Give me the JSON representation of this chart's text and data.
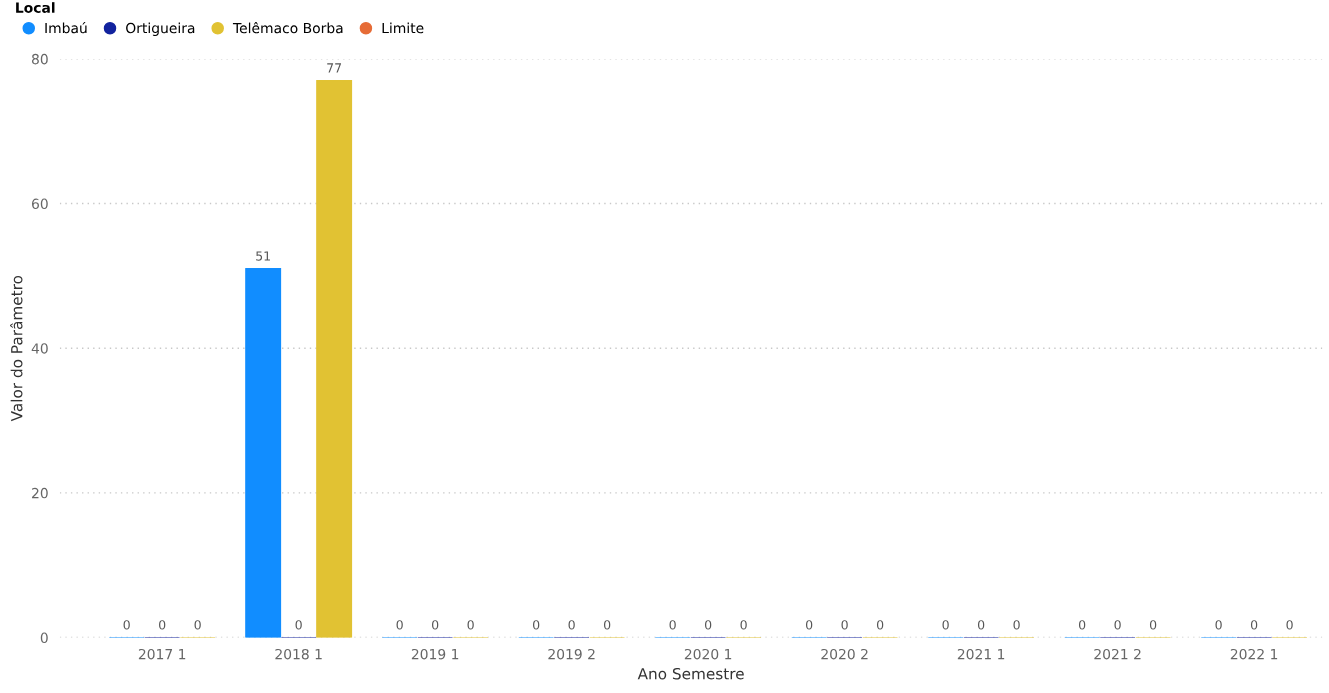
{
  "chart_data": {
    "type": "bar",
    "xlabel": "Ano Semestre",
    "ylabel": "Valor do Parâmetro",
    "legend_title": "Local",
    "categories": [
      "2017 1",
      "2018 1",
      "2019 1",
      "2019 2",
      "2020 1",
      "2020 2",
      "2021 1",
      "2021 2",
      "2022 1"
    ],
    "series": [
      {
        "name": "Imbaú",
        "color": "#118dff",
        "values": [
          0,
          51,
          0,
          0,
          0,
          0,
          0,
          0,
          0
        ]
      },
      {
        "name": "Ortigueira",
        "color": "#12239e",
        "values": [
          0,
          0,
          0,
          0,
          0,
          0,
          0,
          0,
          0
        ]
      },
      {
        "name": "Telêmaco Borba",
        "color": "#e1c233",
        "values": [
          0,
          77,
          0,
          0,
          0,
          0,
          0,
          0,
          0
        ]
      },
      {
        "name": "Limite",
        "color": "#e66c37",
        "type": "line",
        "values": [
          null,
          null,
          null,
          null,
          null,
          null,
          null,
          null,
          null
        ]
      }
    ],
    "ylim": [
      0,
      80
    ],
    "yticks": [
      0,
      20,
      40,
      60,
      80
    ],
    "grid": "y",
    "legend": "top left",
    "data_labels": true
  }
}
